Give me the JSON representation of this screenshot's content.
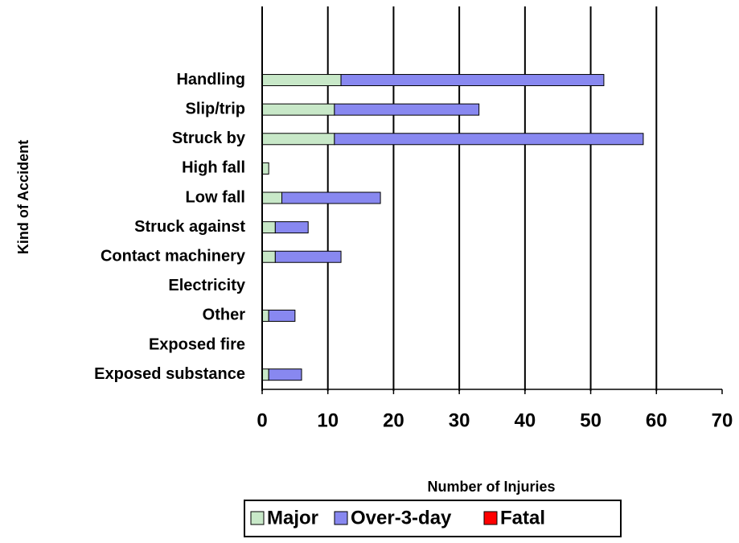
{
  "chart_data": {
    "type": "stacked-bar-horizontal",
    "x_label": "Number of Injuries",
    "y_label": "Kind of Accident",
    "categories": [
      null,
      null,
      "Handling",
      "Slip/trip",
      "Struck by",
      "High fall",
      "Low fall",
      "Struck against",
      "Contact machinery",
      "Electricity",
      "Other",
      "Exposed fire",
      "Exposed substance"
    ],
    "series": [
      {
        "name": "Major",
        "color": "#c8e8c8",
        "values": [
          null,
          null,
          12,
          11,
          11,
          1,
          3,
          2,
          2,
          0,
          1,
          0,
          1
        ]
      },
      {
        "name": "Over-3-day",
        "color": "#8888f0",
        "values": [
          null,
          null,
          40,
          22,
          47,
          0,
          15,
          5,
          10,
          0,
          4,
          0,
          5
        ]
      },
      {
        "name": "Fatal",
        "color": "#ff0000",
        "values": [
          null,
          null,
          0,
          0,
          0,
          0,
          0,
          0,
          0,
          0,
          0,
          0,
          0
        ]
      }
    ],
    "xlim": [
      0,
      70
    ],
    "xticks": [
      0,
      10,
      20,
      30,
      40,
      50,
      60,
      70
    ],
    "grid": true,
    "legend": "bottom"
  }
}
